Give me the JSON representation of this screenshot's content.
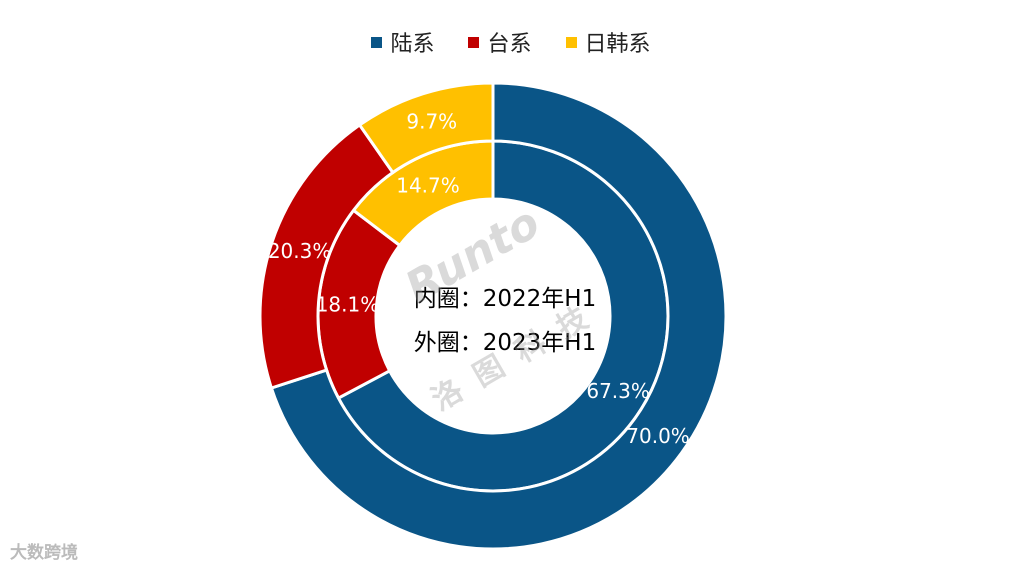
{
  "chart_data": {
    "type": "pie",
    "variant": "double-donut",
    "categories": [
      "陆系",
      "台系",
      "日韩系"
    ],
    "colors": [
      "#0A5587",
      "#C00000",
      "#FFC000"
    ],
    "series": [
      {
        "name": "内圈：2022年H1",
        "ring": "inner",
        "values": [
          67.3,
          18.1,
          14.7
        ],
        "labels": [
          "67.3%",
          "18.1%",
          "14.7%"
        ]
      },
      {
        "name": "外圈：2023年H1",
        "ring": "outer",
        "values": [
          70.0,
          20.3,
          9.7
        ],
        "labels": [
          "70.0%",
          "20.3%",
          "9.7%"
        ]
      }
    ],
    "legend_position": "top",
    "center_text": [
      "内圈：2022年H1",
      "外圈：2023年H1"
    ]
  },
  "watermark": {
    "text": "Runto",
    "subtext": "洛图科技"
  },
  "logo": {
    "text": "大数跨境"
  }
}
